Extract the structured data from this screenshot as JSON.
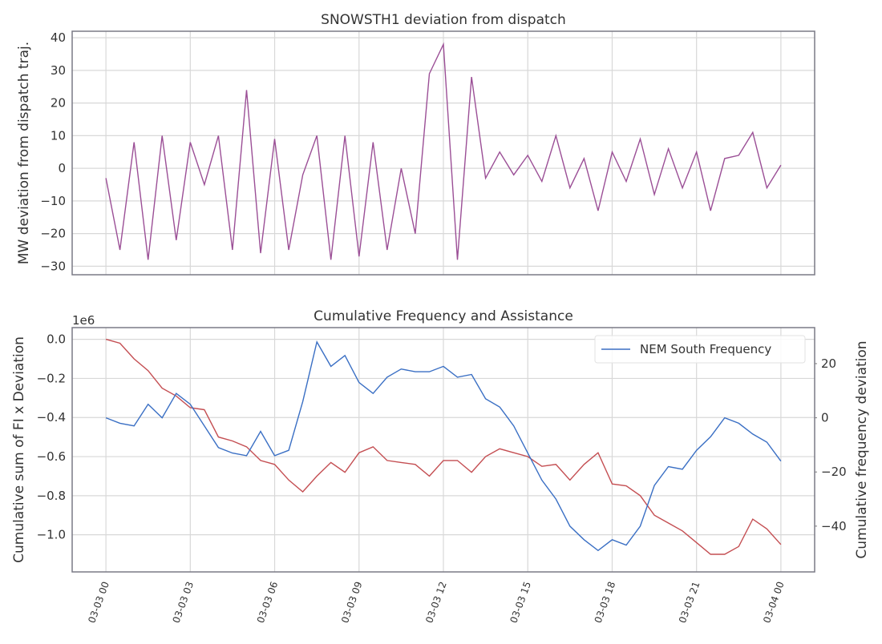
{
  "chart_data": [
    {
      "type": "line",
      "title": "SNOWSTH1 deviation from dispatch",
      "y_label": "MW deviation from dispatch traj.",
      "x": [
        "03-03 00:00",
        "03-03 00:30",
        "03-03 01:00",
        "03-03 01:30",
        "03-03 02:00",
        "03-03 02:30",
        "03-03 03:00",
        "03-03 03:30",
        "03-03 04:00",
        "03-03 04:30",
        "03-03 05:00",
        "03-03 05:30",
        "03-03 06:00",
        "03-03 06:30",
        "03-03 07:00",
        "03-03 07:30",
        "03-03 08:00",
        "03-03 08:30",
        "03-03 09:00",
        "03-03 09:30",
        "03-03 10:00",
        "03-03 10:30",
        "03-03 11:00",
        "03-03 11:30",
        "03-03 12:00",
        "03-03 12:30",
        "03-03 13:00",
        "03-03 13:30",
        "03-03 14:00",
        "03-03 14:30",
        "03-03 15:00",
        "03-03 15:30",
        "03-03 16:00",
        "03-03 16:30",
        "03-03 17:00",
        "03-03 17:30",
        "03-03 18:00",
        "03-03 18:30",
        "03-03 19:00",
        "03-03 19:30",
        "03-03 20:00",
        "03-03 20:30",
        "03-03 21:00",
        "03-03 21:30",
        "03-03 22:00",
        "03-03 22:30",
        "03-03 23:00",
        "03-03 23:30",
        "03-04 00:00"
      ],
      "series": [
        {
          "color": "#9b4f96",
          "values": [
            -3,
            -25,
            8,
            -28,
            10,
            -22,
            8,
            -5,
            10,
            -25,
            24,
            -26,
            9,
            -25,
            -2,
            10,
            -28,
            10,
            -27,
            8,
            -25,
            0,
            -20,
            29,
            38,
            -28,
            28,
            -3,
            5,
            -2,
            4,
            -4,
            10,
            -6,
            3,
            -13,
            5,
            -4,
            9,
            -8,
            6,
            -6,
            5,
            -13,
            3,
            4,
            11,
            -6,
            1
          ]
        }
      ],
      "xlim": [
        "03-02 22:48",
        "03-04 01:12"
      ],
      "xticks": [
        "03-03 00:00",
        "03-03 03:00",
        "03-03 06:00",
        "03-03 09:00",
        "03-03 12:00",
        "03-03 15:00",
        "03-03 18:00",
        "03-03 21:00",
        "03-04 00:00"
      ],
      "ylim": [
        -32.6,
        42
      ],
      "yticks": [
        {
          "value": -30,
          "label": "−30"
        },
        {
          "value": -20,
          "label": "−20"
        },
        {
          "value": -10,
          "label": "−10"
        },
        0,
        10,
        20,
        30,
        40
      ],
      "grid": true
    },
    {
      "type": "line",
      "title": "Cumulative Frequency and Assistance",
      "y_label": "Cumulative sum of FI x Deviation",
      "y_offset_label": "1e6",
      "y2_label": "Cumulative frequency deviation",
      "x": [
        "03-03 00:00",
        "03-03 00:30",
        "03-03 01:00",
        "03-03 01:30",
        "03-03 02:00",
        "03-03 02:30",
        "03-03 03:00",
        "03-03 03:30",
        "03-03 04:00",
        "03-03 04:30",
        "03-03 05:00",
        "03-03 05:30",
        "03-03 06:00",
        "03-03 06:30",
        "03-03 07:00",
        "03-03 07:30",
        "03-03 08:00",
        "03-03 08:30",
        "03-03 09:00",
        "03-03 09:30",
        "03-03 10:00",
        "03-03 10:30",
        "03-03 11:00",
        "03-03 11:30",
        "03-03 12:00",
        "03-03 12:30",
        "03-03 13:00",
        "03-03 13:30",
        "03-03 14:00",
        "03-03 14:30",
        "03-03 15:00",
        "03-03 15:30",
        "03-03 16:00",
        "03-03 16:30",
        "03-03 17:00",
        "03-03 17:30",
        "03-03 18:00",
        "03-03 18:30",
        "03-03 19:00",
        "03-03 19:30",
        "03-03 20:00",
        "03-03 20:30",
        "03-03 21:00",
        "03-03 21:30",
        "03-03 22:00",
        "03-03 22:30",
        "03-03 23:00",
        "03-03 23:30",
        "03-04 00:00"
      ],
      "series": [
        {
          "color": "#c44e52",
          "values": [
            0.0,
            -0.02,
            -0.1,
            -0.16,
            -0.25,
            -0.29,
            -0.35,
            -0.36,
            -0.5,
            -0.52,
            -0.55,
            -0.62,
            -0.64,
            -0.72,
            -0.78,
            -0.7,
            -0.63,
            -0.68,
            -0.58,
            -0.55,
            -0.62,
            -0.63,
            -0.64,
            -0.7,
            -0.62,
            -0.62,
            -0.68,
            -0.6,
            -0.56,
            -0.58,
            -0.6,
            -0.65,
            -0.64,
            -0.72,
            -0.64,
            -0.58,
            -0.74,
            -0.75,
            -0.8,
            -0.9,
            -0.94,
            -0.98,
            -1.04,
            -1.1,
            -1.1,
            -1.06,
            -0.92,
            -0.97,
            -1.05
          ]
        },
        {
          "name": "NEM South Frequency",
          "color": "#3a6fc4",
          "axis": "y2",
          "values": [
            0,
            -2,
            -3,
            5,
            0,
            9,
            5,
            -3,
            -11,
            -13,
            -14,
            -5,
            -14,
            -12,
            6,
            28,
            19,
            23,
            13,
            9,
            15,
            18,
            17,
            17,
            19,
            15,
            16,
            7,
            4,
            -3,
            -13,
            -23,
            -30,
            -40,
            -45,
            -49,
            -45,
            -47,
            -40,
            -25,
            -18,
            -19,
            -12,
            -7,
            0,
            -2,
            -6,
            -9,
            -16
          ]
        }
      ],
      "xlim": [
        "03-02 22:48",
        "03-04 01:12"
      ],
      "xticks": [
        {
          "value": "03-03 00:00",
          "label": "03-03 00"
        },
        {
          "value": "03-03 03:00",
          "label": "03-03 03"
        },
        {
          "value": "03-03 06:00",
          "label": "03-03 06"
        },
        {
          "value": "03-03 09:00",
          "label": "03-03 09"
        },
        {
          "value": "03-03 12:00",
          "label": "03-03 12"
        },
        {
          "value": "03-03 15:00",
          "label": "03-03 15"
        },
        {
          "value": "03-03 18:00",
          "label": "03-03 18"
        },
        {
          "value": "03-03 21:00",
          "label": "03-03 21"
        },
        {
          "value": "03-04 00:00",
          "label": "03-04 00"
        }
      ],
      "ylim": [
        -1.19,
        0.06
      ],
      "yticks": [
        {
          "value": -1.0,
          "label": "−1.0"
        },
        {
          "value": -0.8,
          "label": "−0.8"
        },
        {
          "value": -0.6,
          "label": "−0.6"
        },
        {
          "value": -0.4,
          "label": "−0.4"
        },
        {
          "value": -0.2,
          "label": "−0.2"
        },
        {
          "value": 0,
          "label": "0.0"
        }
      ],
      "y2lim": [
        -56.9,
        33.3
      ],
      "y2ticks": [
        {
          "value": -40,
          "label": "−40"
        },
        {
          "value": -20,
          "label": "−20"
        },
        0,
        20
      ],
      "grid": true,
      "legend": "upper right"
    }
  ]
}
